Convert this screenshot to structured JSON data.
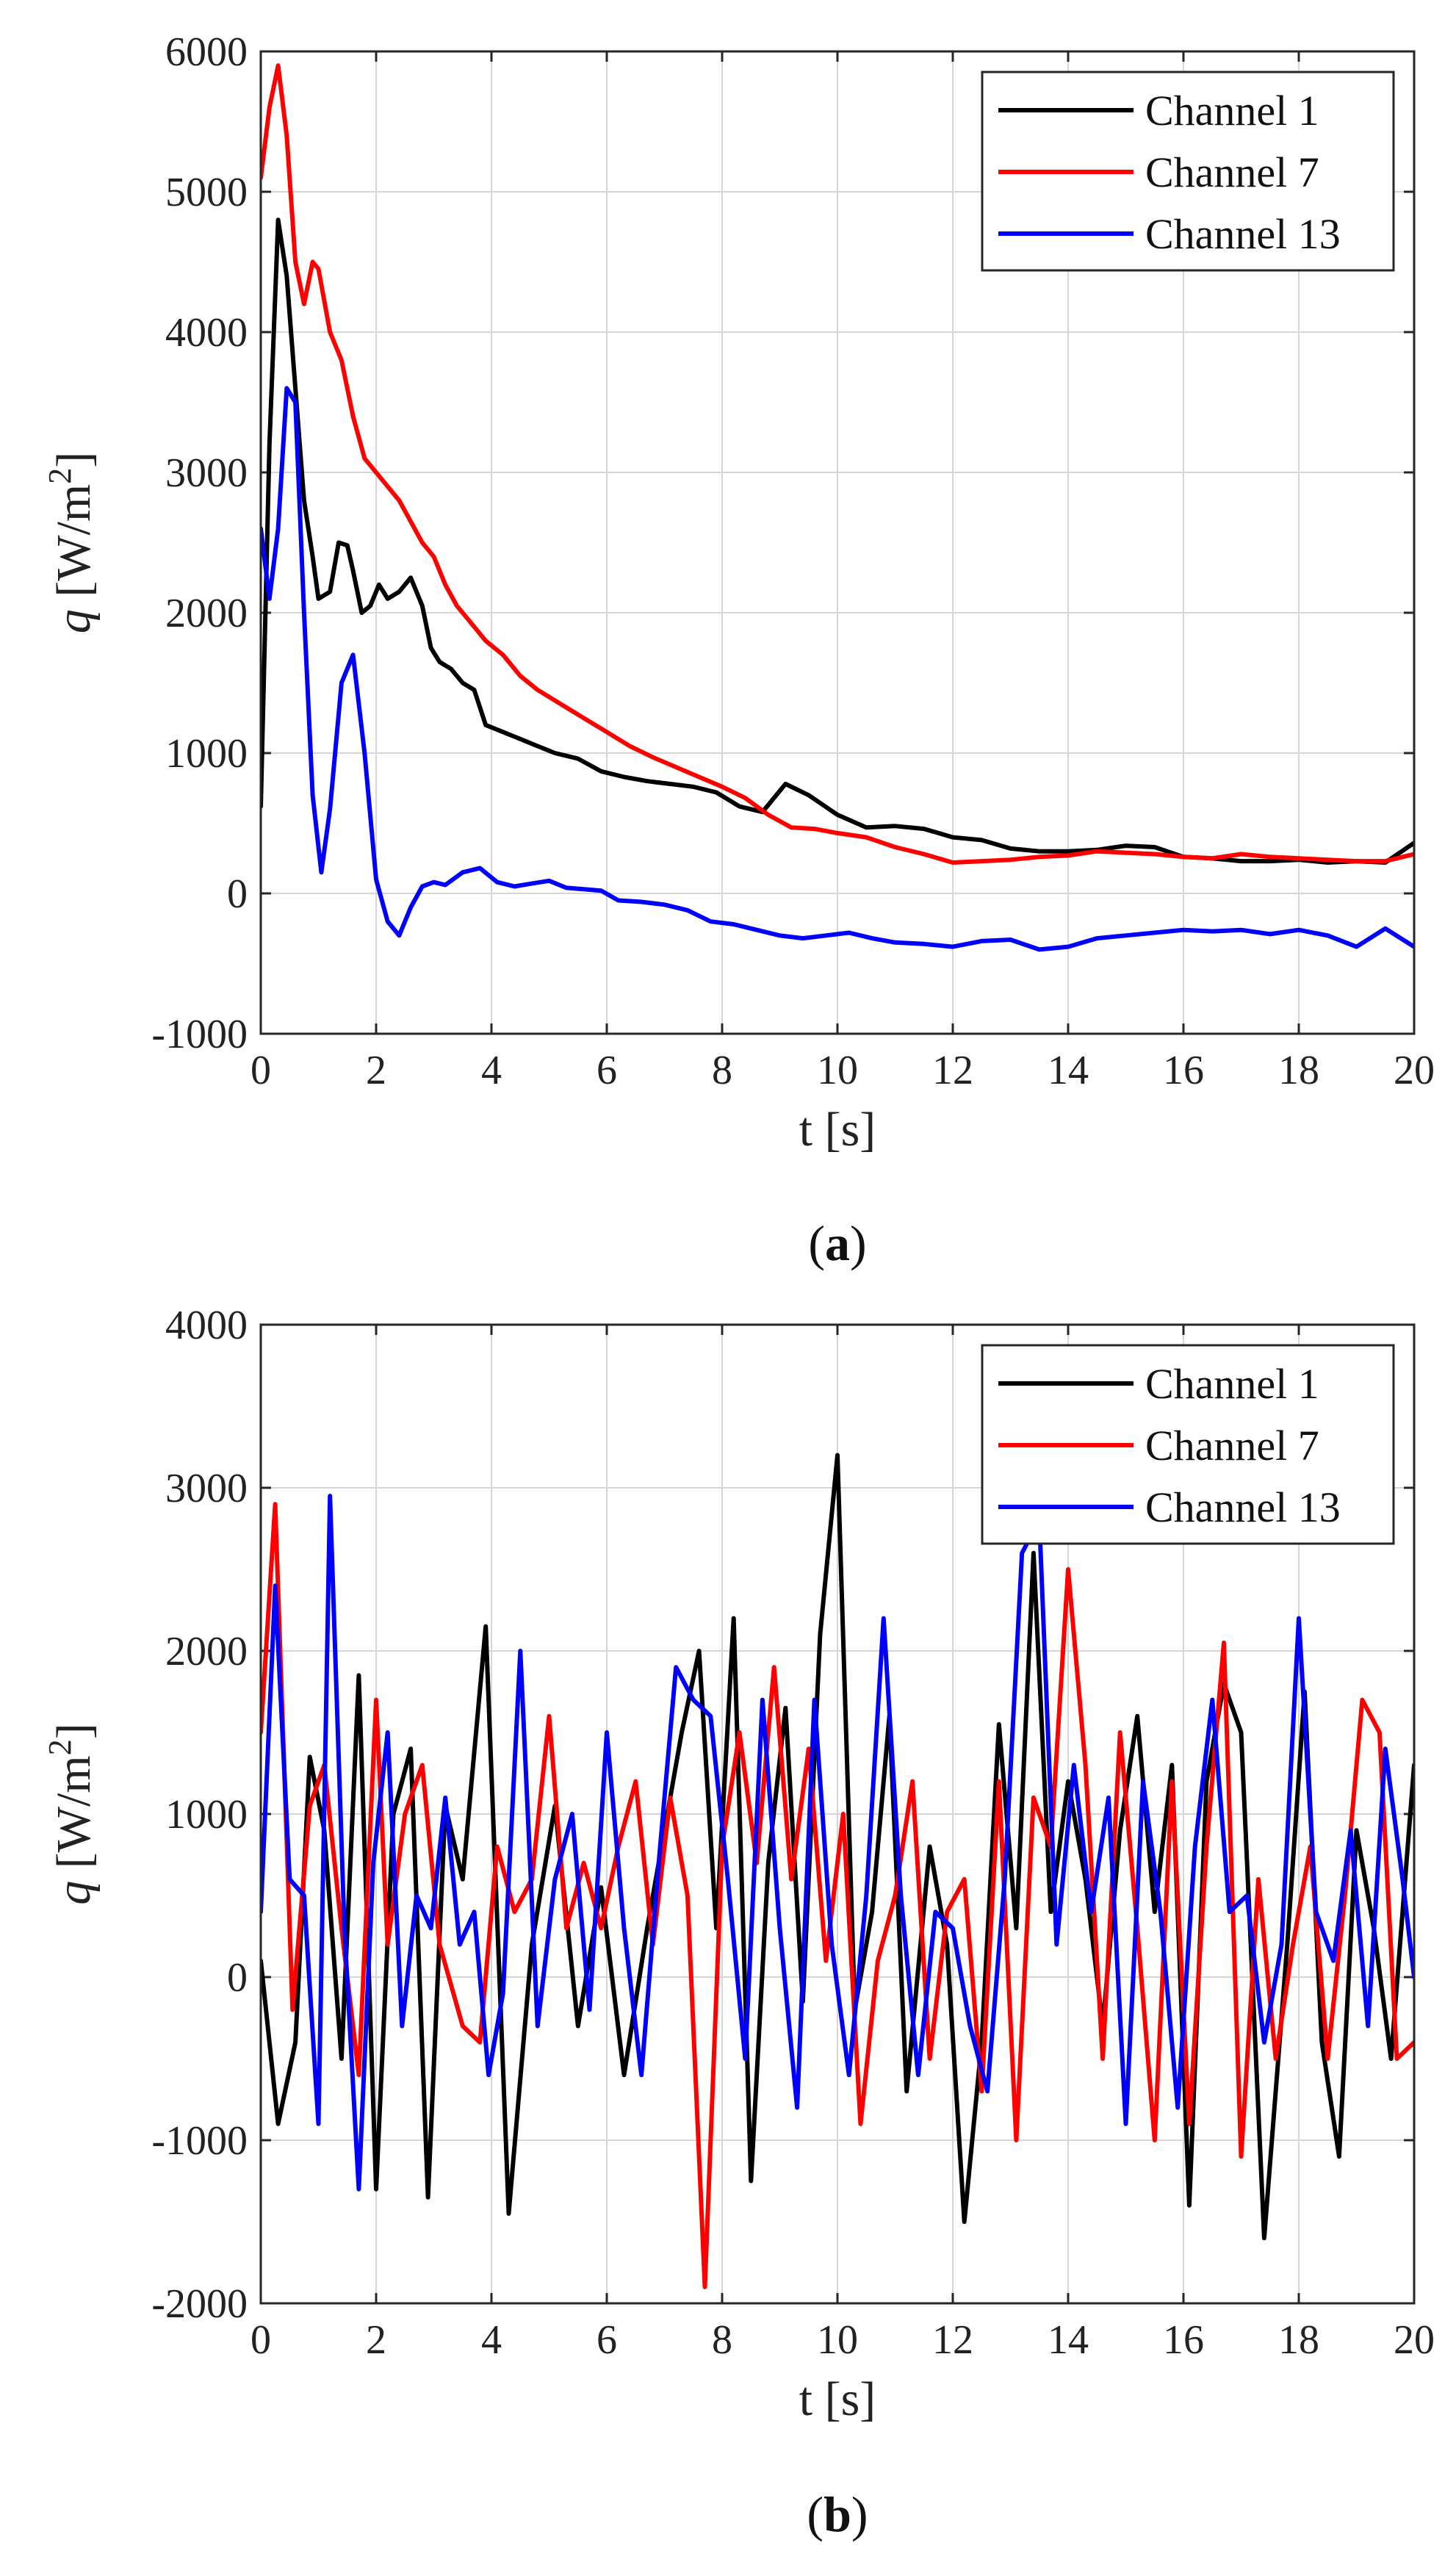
{
  "chart_data": [
    {
      "type": "line",
      "panel": "a",
      "caption_letter": "a",
      "xlabel": "t [s]",
      "ylabel_var": "q",
      "ylabel_unit": "[W/m",
      "ylabel_exp": "2",
      "ylabel_close": "]",
      "xlim": [
        0,
        20
      ],
      "ylim": [
        -1000,
        6000
      ],
      "xticks": [
        "0",
        "2",
        "4",
        "6",
        "8",
        "10",
        "12",
        "14",
        "16",
        "18",
        "20"
      ],
      "yticks": [
        "-1000",
        "0",
        "1000",
        "2000",
        "3000",
        "4000",
        "5000",
        "6000"
      ],
      "grid": true,
      "legend_position": "top-right",
      "series": [
        {
          "name": "Channel 1",
          "color": "#000000",
          "x": [
            0,
            0.15,
            0.3,
            0.45,
            0.6,
            0.75,
            0.9,
            1.0,
            1.2,
            1.35,
            1.5,
            1.6,
            1.75,
            1.9,
            2.05,
            2.2,
            2.4,
            2.6,
            2.8,
            2.95,
            3.1,
            3.3,
            3.5,
            3.7,
            3.9,
            4.2,
            4.5,
            4.8,
            5.1,
            5.5,
            5.9,
            6.3,
            6.7,
            7.1,
            7.5,
            7.9,
            8.3,
            8.7,
            9.1,
            9.5,
            10,
            10.5,
            11,
            11.5,
            12,
            12.5,
            13,
            13.5,
            14,
            14.5,
            15,
            15.5,
            16,
            16.5,
            17,
            17.5,
            18,
            18.5,
            19,
            19.5,
            20
          ],
          "values": [
            620,
            3200,
            4800,
            4400,
            3600,
            2800,
            2400,
            2100,
            2150,
            2500,
            2480,
            2300,
            2000,
            2050,
            2200,
            2100,
            2150,
            2250,
            2050,
            1750,
            1650,
            1600,
            1500,
            1450,
            1200,
            1150,
            1100,
            1050,
            1000,
            960,
            870,
            830,
            800,
            780,
            760,
            720,
            620,
            580,
            780,
            700,
            560,
            470,
            480,
            460,
            400,
            380,
            320,
            300,
            300,
            310,
            340,
            330,
            260,
            250,
            230,
            230,
            240,
            220,
            230,
            220,
            360
          ]
        },
        {
          "name": "Channel 7",
          "color": "#ff0000",
          "x": [
            0,
            0.15,
            0.3,
            0.45,
            0.6,
            0.75,
            0.9,
            1.0,
            1.2,
            1.4,
            1.6,
            1.8,
            2.0,
            2.2,
            2.4,
            2.6,
            2.8,
            3.0,
            3.2,
            3.4,
            3.6,
            3.9,
            4.2,
            4.5,
            4.8,
            5.2,
            5.6,
            6.0,
            6.4,
            6.8,
            7.2,
            7.6,
            8.0,
            8.4,
            8.8,
            9.2,
            9.6,
            10,
            10.5,
            11,
            11.5,
            12,
            12.5,
            13,
            13.5,
            14,
            14.5,
            15,
            15.5,
            16,
            16.5,
            17,
            17.5,
            18,
            18.5,
            19,
            19.5,
            20
          ],
          "values": [
            5100,
            5600,
            5900,
            5400,
            4500,
            4200,
            4500,
            4450,
            4000,
            3800,
            3400,
            3100,
            3000,
            2900,
            2800,
            2650,
            2500,
            2400,
            2200,
            2050,
            1950,
            1800,
            1700,
            1550,
            1450,
            1350,
            1250,
            1150,
            1050,
            970,
            900,
            830,
            760,
            680,
            560,
            470,
            460,
            430,
            400,
            330,
            280,
            220,
            230,
            240,
            260,
            270,
            300,
            290,
            280,
            260,
            250,
            280,
            260,
            250,
            240,
            230,
            230,
            280
          ]
        },
        {
          "name": "Channel 13",
          "color": "#0000ff",
          "x": [
            0,
            0.15,
            0.3,
            0.45,
            0.6,
            0.75,
            0.9,
            1.05,
            1.2,
            1.4,
            1.6,
            1.8,
            2.0,
            2.2,
            2.4,
            2.6,
            2.8,
            3.0,
            3.2,
            3.5,
            3.8,
            4.1,
            4.4,
            4.7,
            5.0,
            5.3,
            5.6,
            5.9,
            6.2,
            6.6,
            7.0,
            7.4,
            7.8,
            8.2,
            8.6,
            9.0,
            9.4,
            9.8,
            10.2,
            10.6,
            11,
            11.5,
            12,
            12.5,
            13,
            13.5,
            14,
            14.5,
            15,
            15.5,
            16,
            16.5,
            17,
            17.5,
            18,
            18.5,
            19,
            19.5,
            20
          ],
          "values": [
            2600,
            2100,
            2600,
            3600,
            3500,
            2000,
            700,
            150,
            600,
            1500,
            1700,
            1000,
            100,
            -200,
            -300,
            -100,
            50,
            80,
            60,
            150,
            180,
            80,
            50,
            70,
            90,
            40,
            30,
            20,
            -50,
            -60,
            -80,
            -120,
            -200,
            -220,
            -260,
            -300,
            -320,
            -300,
            -280,
            -320,
            -350,
            -360,
            -380,
            -340,
            -330,
            -400,
            -380,
            -320,
            -300,
            -280,
            -260,
            -270,
            -260,
            -290,
            -260,
            -300,
            -380,
            -250,
            -380
          ]
        }
      ]
    },
    {
      "type": "line",
      "panel": "b",
      "caption_letter": "b",
      "xlabel": "t [s]",
      "ylabel_var": "q",
      "ylabel_unit": "[W/m",
      "ylabel_exp": "2",
      "ylabel_close": "]",
      "xlim": [
        0,
        20
      ],
      "ylim": [
        -2000,
        4000
      ],
      "xticks": [
        "0",
        "2",
        "4",
        "6",
        "8",
        "10",
        "12",
        "14",
        "16",
        "18",
        "20"
      ],
      "yticks": [
        "-2000",
        "-1000",
        "0",
        "1000",
        "2000",
        "3000",
        "4000"
      ],
      "grid": true,
      "legend_position": "top-right",
      "series": [
        {
          "name": "Channel 1",
          "color": "#000000",
          "x": [
            0,
            0.3,
            0.6,
            0.85,
            1.1,
            1.4,
            1.7,
            2.0,
            2.3,
            2.6,
            2.9,
            3.2,
            3.5,
            3.9,
            4.3,
            4.7,
            5.1,
            5.5,
            5.9,
            6.3,
            6.7,
            7.0,
            7.3,
            7.6,
            7.9,
            8.2,
            8.5,
            8.8,
            9.1,
            9.4,
            9.7,
            10.0,
            10.3,
            10.6,
            10.9,
            11.2,
            11.6,
            11.9,
            12.2,
            12.5,
            12.8,
            13.1,
            13.4,
            13.7,
            14.0,
            14.3,
            14.6,
            14.9,
            15.2,
            15.5,
            15.8,
            16.1,
            16.4,
            16.7,
            17.0,
            17.4,
            17.8,
            18.1,
            18.4,
            18.7,
            19.0,
            19.3,
            19.6,
            20
          ],
          "values": [
            100,
            -900,
            -400,
            1350,
            900,
            -500,
            1850,
            -1300,
            1000,
            1400,
            -1350,
            1050,
            600,
            2150,
            -1450,
            200,
            1050,
            -300,
            550,
            -600,
            300,
            900,
            1500,
            2000,
            300,
            2200,
            -1250,
            700,
            1650,
            -150,
            2100,
            3200,
            -200,
            400,
            1600,
            -700,
            800,
            200,
            -1500,
            -400,
            1550,
            300,
            2600,
            400,
            1200,
            600,
            -300,
            900,
            1600,
            400,
            1300,
            -1400,
            1200,
            1800,
            1500,
            -1600,
            200,
            1750,
            -400,
            -1100,
            900,
            300,
            -500,
            1300
          ]
        },
        {
          "name": "Channel 7",
          "color": "#ff0000",
          "x": [
            0,
            0.25,
            0.55,
            0.85,
            1.1,
            1.4,
            1.7,
            2.0,
            2.2,
            2.5,
            2.8,
            3.1,
            3.5,
            3.8,
            4.1,
            4.4,
            4.7,
            5.0,
            5.3,
            5.6,
            5.9,
            6.2,
            6.5,
            6.8,
            7.1,
            7.4,
            7.7,
            8.0,
            8.3,
            8.6,
            8.9,
            9.2,
            9.5,
            9.8,
            10.1,
            10.4,
            10.7,
            11.0,
            11.3,
            11.6,
            11.9,
            12.2,
            12.5,
            12.8,
            13.1,
            13.4,
            13.7,
            14.0,
            14.3,
            14.6,
            14.9,
            15.2,
            15.5,
            15.8,
            16.1,
            16.4,
            16.7,
            17.0,
            17.3,
            17.6,
            17.9,
            18.2,
            18.5,
            18.8,
            19.1,
            19.4,
            19.7,
            20
          ],
          "values": [
            1500,
            2900,
            -200,
            1050,
            1300,
            300,
            -600,
            1700,
            200,
            1000,
            1300,
            200,
            -300,
            -400,
            800,
            400,
            600,
            1600,
            300,
            700,
            300,
            800,
            1200,
            200,
            1100,
            500,
            -1900,
            800,
            1500,
            700,
            1900,
            600,
            1400,
            100,
            1000,
            -900,
            100,
            500,
            1200,
            -500,
            400,
            600,
            -700,
            1200,
            -1000,
            1100,
            800,
            2500,
            1300,
            -500,
            1500,
            300,
            -1000,
            1200,
            -900,
            800,
            2050,
            -1100,
            600,
            -500,
            200,
            800,
            -500,
            500,
            1700,
            1500,
            -500,
            -400
          ]
        },
        {
          "name": "Channel 13",
          "color": "#0000ff",
          "x": [
            0,
            0.25,
            0.5,
            0.75,
            1.0,
            1.2,
            1.45,
            1.7,
            1.95,
            2.2,
            2.45,
            2.7,
            2.95,
            3.2,
            3.45,
            3.7,
            3.95,
            4.2,
            4.5,
            4.8,
            5.1,
            5.4,
            5.7,
            6.0,
            6.3,
            6.6,
            6.9,
            7.2,
            7.5,
            7.8,
            8.1,
            8.4,
            8.7,
            9.0,
            9.3,
            9.6,
            9.9,
            10.2,
            10.5,
            10.8,
            11.1,
            11.4,
            11.7,
            12.0,
            12.3,
            12.6,
            12.9,
            13.2,
            13.5,
            13.8,
            14.1,
            14.4,
            14.7,
            15.0,
            15.3,
            15.6,
            15.9,
            16.2,
            16.5,
            16.8,
            17.1,
            17.4,
            17.7,
            18.0,
            18.3,
            18.6,
            18.9,
            19.2,
            19.5,
            19.8,
            20
          ],
          "values": [
            400,
            2400,
            600,
            500,
            -900,
            2950,
            300,
            -1300,
            700,
            1500,
            -300,
            500,
            300,
            1100,
            200,
            400,
            -600,
            -100,
            2000,
            -300,
            600,
            1000,
            -200,
            1500,
            300,
            -600,
            700,
            1900,
            1700,
            1600,
            600,
            -500,
            1700,
            300,
            -800,
            1700,
            200,
            -600,
            500,
            2200,
            500,
            -600,
            400,
            300,
            -300,
            -700,
            600,
            2600,
            2800,
            200,
            1300,
            400,
            1100,
            -900,
            1200,
            400,
            -800,
            800,
            1700,
            400,
            500,
            -400,
            200,
            2200,
            400,
            100,
            900,
            -300,
            1400,
            600,
            0
          ]
        }
      ]
    }
  ]
}
